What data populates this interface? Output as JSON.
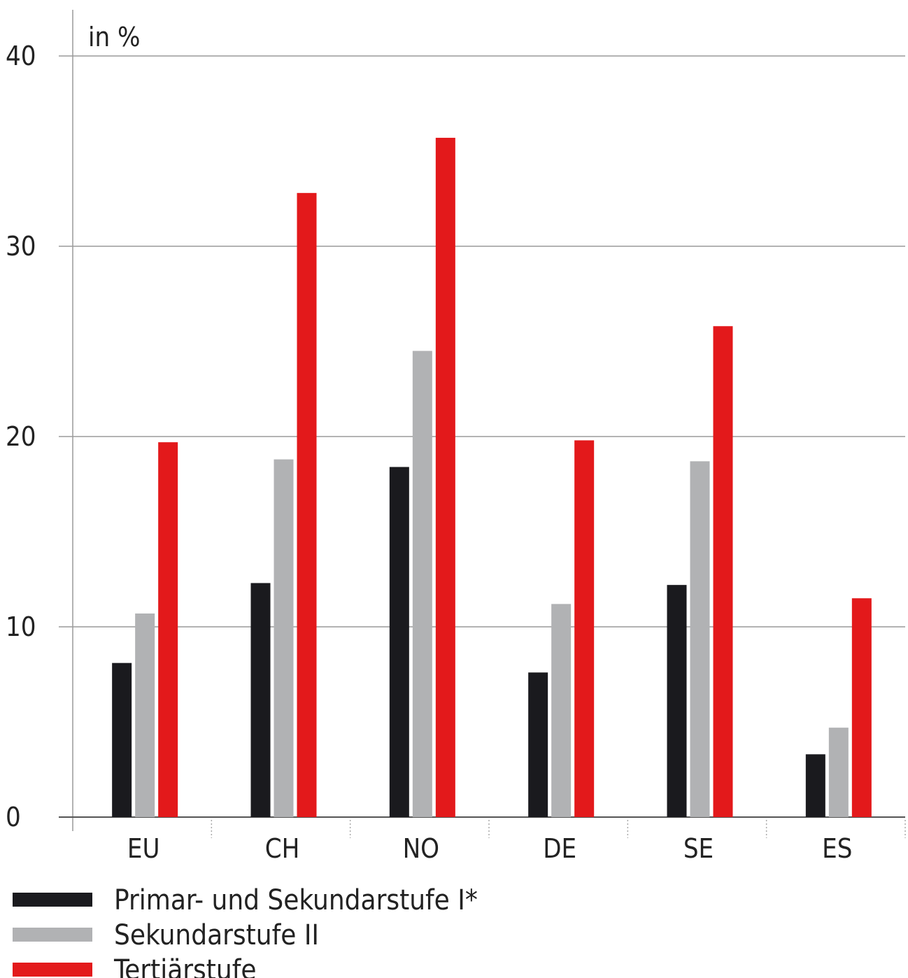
{
  "chart_data": {
    "type": "bar",
    "unit_label": "in %",
    "categories": [
      "EU",
      "CH",
      "NO",
      "DE",
      "SE",
      "ES"
    ],
    "series": [
      {
        "name": "Primar- und Sekundarstufe I*",
        "color": "#1a1a1e",
        "values": [
          8.1,
          12.3,
          18.4,
          7.6,
          12.2,
          3.3
        ]
      },
      {
        "name": "Sekundarstufe II",
        "color": "#b1b2b4",
        "values": [
          10.7,
          18.8,
          24.5,
          11.2,
          18.7,
          4.7
        ]
      },
      {
        "name": "Tertiärstufe",
        "color": "#e3191b",
        "values": [
          19.7,
          32.8,
          35.7,
          19.8,
          25.8,
          11.5
        ]
      }
    ],
    "y_ticks": [
      "0",
      "10",
      "20",
      "30",
      "40"
    ],
    "ylim": [
      0,
      40
    ],
    "grid": true,
    "legend_position": "bottom-left"
  }
}
